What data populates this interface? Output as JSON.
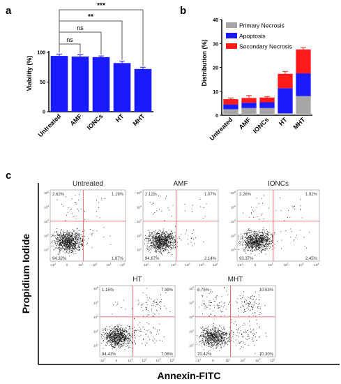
{
  "panels": {
    "a_letter": "a",
    "b_letter": "b",
    "c_letter": "c"
  },
  "chart_data": [
    {
      "type": "bar",
      "panel": "a",
      "categories": [
        "Untreated",
        "AMF",
        "IONCs",
        "HT",
        "MHT"
      ],
      "values": [
        94,
        93,
        92,
        82,
        72
      ],
      "errors": [
        3,
        3,
        2,
        3,
        3
      ],
      "ylabel": "Viability (%)",
      "yticks": [
        0,
        50,
        100
      ],
      "ylim": [
        0,
        100
      ],
      "bar_color": "#1a1aff",
      "significance": [
        {
          "from": "Untreated",
          "to": "AMF",
          "label": "ns"
        },
        {
          "from": "Untreated",
          "to": "IONCs",
          "label": "ns"
        },
        {
          "from": "Untreated",
          "to": "HT",
          "label": "**"
        },
        {
          "from": "Untreated",
          "to": "MHT",
          "label": "***"
        }
      ]
    },
    {
      "type": "bar",
      "stacked": true,
      "panel": "b",
      "categories": [
        "Untreated",
        "AMF",
        "IONCs",
        "HT",
        "MHT"
      ],
      "series": [
        {
          "name": "Primary Necrosis",
          "color": "#a6a6a6",
          "values": [
            2.5,
            3.0,
            3.0,
            0.8,
            8.0
          ],
          "errors": [
            0.6,
            0.6,
            0.6,
            0.3,
            1.0
          ]
        },
        {
          "name": "Apoptosis",
          "color": "#1a1aff",
          "values": [
            2.0,
            2.2,
            2.4,
            10.5,
            9.5
          ],
          "errors": [
            0.5,
            0.5,
            0.5,
            2.5,
            1.0
          ]
        },
        {
          "name": "Secondary Necrosis",
          "color": "#ff1a1a",
          "values": [
            2.2,
            2.0,
            2.0,
            6.0,
            10.0
          ],
          "errors": [
            0.5,
            1.0,
            0.4,
            1.0,
            0.8
          ]
        }
      ],
      "ylabel": "Distribution (%)",
      "yticks": [
        0,
        10,
        20,
        30,
        40
      ],
      "ylim": [
        0,
        40
      ],
      "legend": "top-right"
    },
    {
      "type": "scatter",
      "panel": "c",
      "xlabel": "Annexin-FITC",
      "ylabel": "Propidium Iodide",
      "plots": [
        {
          "title": "Untreated",
          "quadrants": {
            "ul": "2.62%",
            "ur": "1.19%",
            "ll": "94.32%",
            "lr": "1.87%"
          }
        },
        {
          "title": "AMF",
          "quadrants": {
            "ul": "2.12%",
            "ur": "1.07%",
            "ll": "94.67%",
            "lr": "2.14%"
          }
        },
        {
          "title": "IONCs",
          "quadrants": {
            "ul": "2.26%",
            "ur": "1.92%",
            "ll": "93.37%",
            "lr": "2.45%"
          }
        },
        {
          "title": "HT",
          "quadrants": {
            "ul": "1.15%",
            "ur": "7.39%",
            "ll": "84.41%",
            "lr": "7.06%"
          }
        },
        {
          "title": "MHT",
          "quadrants": {
            "ul": "8.75%",
            "ur": "10.53%",
            "ll": "70.42%",
            "lr": "10.30%"
          }
        }
      ],
      "x_tick_labels": [
        "-10",
        "0",
        "10",
        "10",
        "10",
        "10"
      ],
      "x_tick_exponents": [
        "1",
        "",
        "1",
        "2",
        "3",
        "4"
      ],
      "y_tick_labels": [
        "10",
        "10",
        "10",
        "10",
        "10"
      ],
      "y_tick_exponents": [
        "1",
        "2",
        "3",
        "4",
        "5"
      ]
    }
  ]
}
